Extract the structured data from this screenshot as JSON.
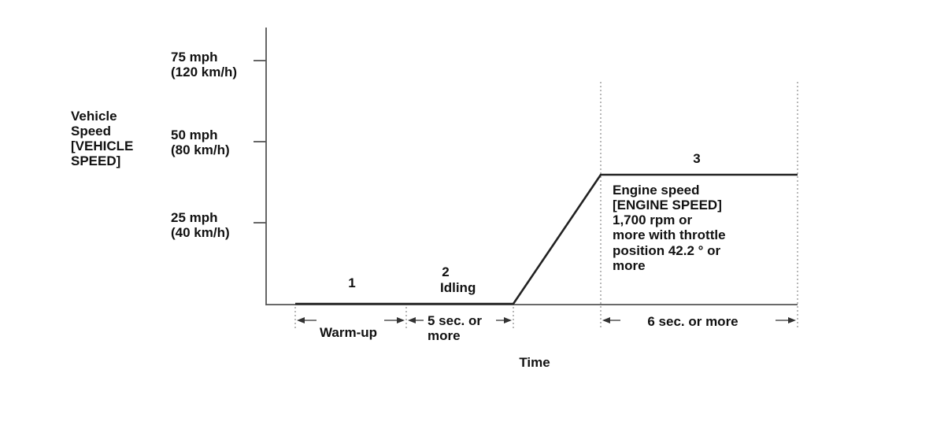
{
  "y_axis": {
    "title_lines": [
      "Vehicle",
      "Speed",
      "[VEHICLE",
      "SPEED]"
    ],
    "ticks": [
      {
        "mph": 75,
        "lines": [
          "75 mph",
          "(120 km/h)"
        ]
      },
      {
        "mph": 50,
        "lines": [
          "50 mph",
          "(80 km/h)"
        ]
      },
      {
        "mph": 25,
        "lines": [
          "25 mph",
          "(40 km/h)"
        ]
      }
    ]
  },
  "x_axis": {
    "title": "Time"
  },
  "profile": {
    "points_mph": [
      0,
      0,
      40,
      40
    ],
    "hold_speed_mph": 40
  },
  "phases": [
    {
      "number": "1",
      "label": ""
    },
    {
      "number": "2",
      "label": "Idling"
    },
    {
      "number": "3",
      "label_lines": [
        "Engine speed",
        "[ENGINE SPEED]",
        "1,700 rpm or",
        "more with throttle",
        "position 42.2 ° or",
        "more"
      ]
    }
  ],
  "durations": {
    "warmup": "Warm-up",
    "idle_lines": [
      "5 sec. or",
      "more"
    ],
    "hold": "6 sec. or more"
  }
}
